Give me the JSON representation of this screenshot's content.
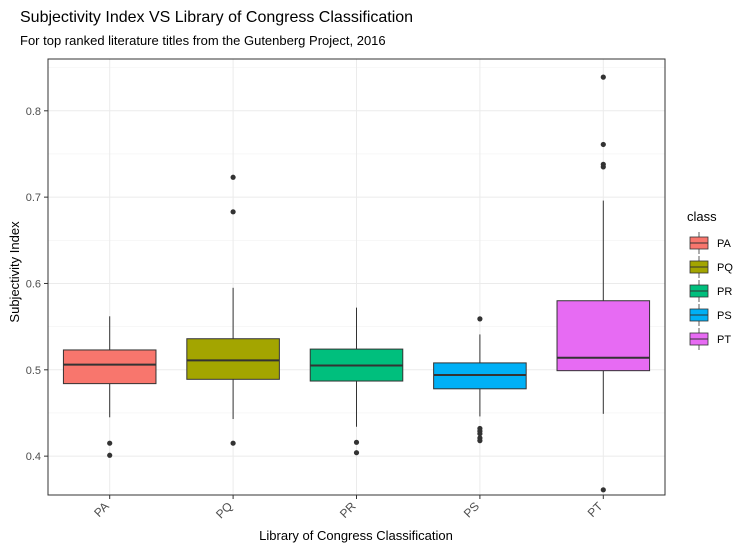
{
  "chart_data": {
    "type": "boxplot",
    "title": "Subjectivity Index VS Library of Congress Classification",
    "subtitle": "For top ranked literature titles from the Gutenberg Project, 2016",
    "xlabel": "Library of Congress Classification",
    "ylabel": "Subjectivity Index",
    "ylim": [
      0.355,
      0.86
    ],
    "yticks": [
      0.4,
      0.5,
      0.6,
      0.7,
      0.8
    ],
    "ytick_labels": [
      "0.4",
      "0.5",
      "0.6",
      "0.7",
      "0.8"
    ],
    "grid": true,
    "legend": {
      "title": "class",
      "position": "right"
    },
    "categories": [
      "PA",
      "PQ",
      "PR",
      "PS",
      "PT"
    ],
    "series": [
      {
        "name": "PA",
        "color": "#F8766D",
        "whisker_low": 0.445,
        "q1": 0.484,
        "median": 0.506,
        "q3": 0.523,
        "whisker_high": 0.562,
        "outliers": [
          0.415,
          0.401
        ]
      },
      {
        "name": "PQ",
        "color": "#A3A500",
        "whisker_low": 0.443,
        "q1": 0.489,
        "median": 0.511,
        "q3": 0.536,
        "whisker_high": 0.595,
        "outliers": [
          0.723,
          0.683,
          0.415
        ]
      },
      {
        "name": "PR",
        "color": "#00BF7D",
        "whisker_low": 0.434,
        "q1": 0.487,
        "median": 0.505,
        "q3": 0.524,
        "whisker_high": 0.572,
        "outliers": [
          0.416,
          0.404
        ]
      },
      {
        "name": "PS",
        "color": "#00B0F6",
        "whisker_low": 0.446,
        "q1": 0.478,
        "median": 0.494,
        "q3": 0.508,
        "whisker_high": 0.541,
        "outliers": [
          0.559,
          0.432,
          0.429,
          0.426,
          0.421,
          0.418
        ]
      },
      {
        "name": "PT",
        "color": "#E76BF3",
        "whisker_low": 0.449,
        "q1": 0.499,
        "median": 0.514,
        "q3": 0.58,
        "whisker_high": 0.696,
        "outliers": [
          0.839,
          0.761,
          0.738,
          0.735,
          0.361
        ]
      }
    ]
  }
}
